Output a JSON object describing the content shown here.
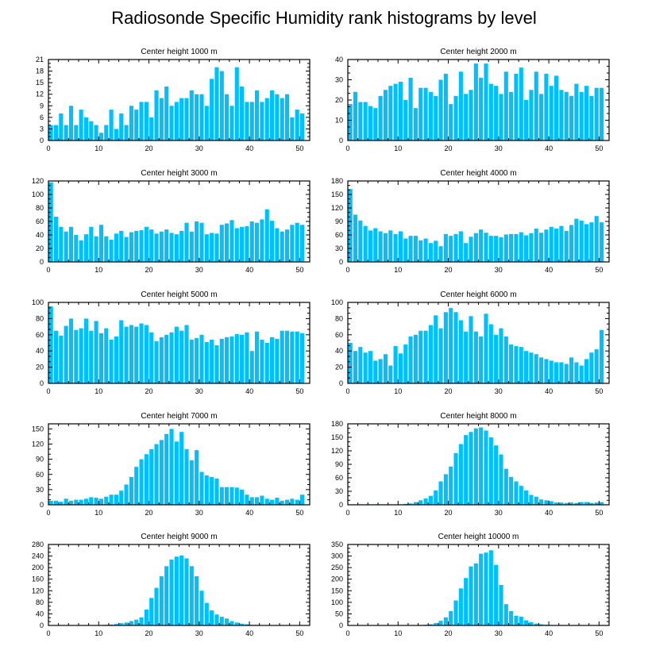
{
  "title": "Radiosonde Specific Humidity rank histograms by level",
  "colors": {
    "bar": "#00BFFF",
    "axis": "#000000",
    "background": "#FFFFFF"
  },
  "chart_data": [
    {
      "type": "bar",
      "title": "Center height 1000 m",
      "xlim": [
        0,
        52
      ],
      "ylim": [
        0,
        21
      ],
      "xticks": [
        0,
        10,
        20,
        30,
        40,
        50
      ],
      "yticks": [
        0,
        3,
        6,
        9,
        12,
        15,
        18,
        21
      ],
      "values": [
        4,
        4,
        7,
        4,
        9,
        4,
        8,
        6,
        5,
        4,
        2,
        4,
        8,
        3,
        7,
        4,
        9,
        8,
        10,
        10,
        6,
        13,
        11,
        14,
        9,
        10,
        11,
        11,
        13,
        12,
        12,
        9,
        16,
        19,
        18,
        12,
        9,
        19,
        14,
        10,
        10,
        13,
        10,
        11,
        13,
        12,
        11,
        12,
        6,
        8,
        7
      ]
    },
    {
      "type": "bar",
      "title": "Center height 2000 m",
      "xlim": [
        0,
        52
      ],
      "ylim": [
        0,
        40
      ],
      "xticks": [
        0,
        10,
        20,
        30,
        40,
        50
      ],
      "yticks": [
        0,
        10,
        20,
        30,
        40
      ],
      "values": [
        18,
        24,
        19,
        19,
        17,
        16,
        22,
        25,
        27,
        28,
        29,
        20,
        31,
        16,
        26,
        26,
        24,
        22,
        30,
        33,
        18,
        22,
        34,
        23,
        25,
        38,
        31,
        38,
        28,
        27,
        23,
        34,
        24,
        33,
        36,
        20,
        25,
        34,
        23,
        33,
        27,
        32,
        25,
        24,
        22,
        28,
        24,
        27,
        22,
        26,
        26
      ]
    },
    {
      "type": "bar",
      "title": "Center height 3000 m",
      "xlim": [
        0,
        52
      ],
      "ylim": [
        0,
        120
      ],
      "xticks": [
        0,
        10,
        20,
        30,
        40,
        50
      ],
      "yticks": [
        0,
        20,
        40,
        60,
        80,
        100,
        120
      ],
      "values": [
        118,
        67,
        52,
        45,
        52,
        40,
        32,
        41,
        52,
        38,
        55,
        38,
        33,
        42,
        46,
        37,
        44,
        46,
        47,
        52,
        48,
        42,
        45,
        48,
        43,
        41,
        46,
        58,
        45,
        60,
        58,
        41,
        43,
        42,
        55,
        57,
        62,
        50,
        52,
        53,
        60,
        58,
        63,
        78,
        61,
        50,
        45,
        48,
        55,
        58,
        55
      ]
    },
    {
      "type": "bar",
      "title": "Center height 4000 m",
      "xlim": [
        0,
        52
      ],
      "ylim": [
        0,
        180
      ],
      "xticks": [
        0,
        10,
        20,
        30,
        40,
        50
      ],
      "yticks": [
        0,
        30,
        60,
        90,
        120,
        150,
        180
      ],
      "values": [
        162,
        105,
        92,
        80,
        70,
        75,
        68,
        64,
        70,
        62,
        68,
        52,
        58,
        58,
        48,
        52,
        42,
        47,
        35,
        62,
        58,
        62,
        68,
        42,
        56,
        64,
        72,
        65,
        58,
        58,
        55,
        61,
        62,
        62,
        66,
        59,
        64,
        74,
        65,
        72,
        78,
        74,
        80,
        69,
        82,
        96,
        92,
        84,
        88,
        102,
        88
      ]
    },
    {
      "type": "bar",
      "title": "Center height 5000 m",
      "xlim": [
        0,
        52
      ],
      "ylim": [
        0,
        100
      ],
      "xticks": [
        0,
        10,
        20,
        30,
        40,
        50
      ],
      "yticks": [
        0,
        20,
        40,
        60,
        80,
        100
      ],
      "values": [
        95,
        65,
        59,
        71,
        80,
        66,
        68,
        80,
        65,
        77,
        62,
        68,
        54,
        58,
        78,
        70,
        72,
        70,
        74,
        72,
        63,
        52,
        57,
        60,
        63,
        70,
        65,
        72,
        54,
        56,
        60,
        51,
        54,
        47,
        55,
        57,
        58,
        61,
        60,
        63,
        40,
        64,
        54,
        50,
        57,
        55,
        65,
        65,
        64,
        64,
        62
      ]
    },
    {
      "type": "bar",
      "title": "Center height 6000 m",
      "xlim": [
        0,
        52
      ],
      "ylim": [
        0,
        100
      ],
      "xticks": [
        0,
        10,
        20,
        30,
        40,
        50
      ],
      "yticks": [
        0,
        20,
        40,
        60,
        80,
        100
      ],
      "values": [
        50,
        40,
        45,
        38,
        40,
        28,
        30,
        36,
        22,
        46,
        37,
        48,
        58,
        60,
        65,
        65,
        72,
        84,
        68,
        88,
        93,
        88,
        78,
        64,
        83,
        64,
        58,
        86,
        73,
        60,
        68,
        58,
        48,
        46,
        45,
        40,
        38,
        36,
        32,
        30,
        28,
        26,
        26,
        24,
        32,
        26,
        22,
        30,
        38,
        42,
        66
      ]
    },
    {
      "type": "bar",
      "title": "Center height 7000 m",
      "xlim": [
        0,
        52
      ],
      "ylim": [
        0,
        160
      ],
      "xticks": [
        0,
        10,
        20,
        30,
        40,
        50
      ],
      "yticks": [
        0,
        30,
        60,
        90,
        120,
        150
      ],
      "values": [
        8,
        8,
        6,
        12,
        8,
        10,
        10,
        12,
        15,
        14,
        12,
        16,
        20,
        20,
        28,
        40,
        55,
        75,
        90,
        100,
        110,
        120,
        128,
        140,
        150,
        125,
        144,
        110,
        88,
        108,
        65,
        58,
        55,
        52,
        35,
        35,
        35,
        34,
        30,
        20,
        15,
        15,
        18,
        12,
        10,
        14,
        8,
        10,
        12,
        10,
        20
      ]
    },
    {
      "type": "bar",
      "title": "Center height 8000 m",
      "xlim": [
        0,
        52
      ],
      "ylim": [
        0,
        180
      ],
      "xticks": [
        0,
        10,
        20,
        30,
        40,
        50
      ],
      "yticks": [
        0,
        30,
        60,
        90,
        120,
        150,
        180
      ],
      "values": [
        1,
        1,
        1,
        1,
        1,
        1,
        1,
        1,
        1,
        1,
        1,
        2,
        3,
        6,
        10,
        14,
        20,
        32,
        52,
        68,
        85,
        115,
        135,
        155,
        162,
        170,
        172,
        165,
        150,
        132,
        112,
        80,
        62,
        52,
        42,
        32,
        22,
        18,
        12,
        10,
        8,
        5,
        5,
        4,
        5,
        4,
        6,
        6,
        4,
        5,
        6
      ]
    },
    {
      "type": "bar",
      "title": "Center height 9000 m",
      "xlim": [
        0,
        52
      ],
      "ylim": [
        0,
        280
      ],
      "xticks": [
        0,
        10,
        20,
        30,
        40,
        50
      ],
      "yticks": [
        0,
        40,
        80,
        120,
        160,
        200,
        240,
        280
      ],
      "values": [
        0,
        0,
        0,
        0,
        0,
        0,
        0,
        0,
        0,
        1,
        1,
        2,
        3,
        5,
        8,
        10,
        15,
        20,
        28,
        55,
        95,
        130,
        170,
        205,
        228,
        238,
        242,
        232,
        205,
        170,
        120,
        78,
        52,
        38,
        30,
        24,
        15,
        10,
        6,
        4,
        2,
        2,
        1,
        1,
        1,
        1,
        1,
        1,
        1,
        1,
        1
      ]
    },
    {
      "type": "bar",
      "title": "Center height 10000 m",
      "xlim": [
        0,
        52
      ],
      "ylim": [
        0,
        350
      ],
      "xticks": [
        0,
        10,
        20,
        30,
        40,
        50
      ],
      "yticks": [
        0,
        50,
        100,
        150,
        200,
        250,
        300,
        350
      ],
      "values": [
        0,
        0,
        0,
        0,
        0,
        0,
        0,
        0,
        0,
        0,
        0,
        0,
        0,
        1,
        2,
        3,
        5,
        10,
        20,
        35,
        62,
        108,
        160,
        205,
        255,
        268,
        310,
        315,
        325,
        262,
        175,
        92,
        62,
        42,
        38,
        22,
        14,
        8,
        5,
        3,
        2,
        1,
        1,
        1,
        1,
        1,
        1,
        0,
        0,
        0,
        0
      ]
    }
  ]
}
